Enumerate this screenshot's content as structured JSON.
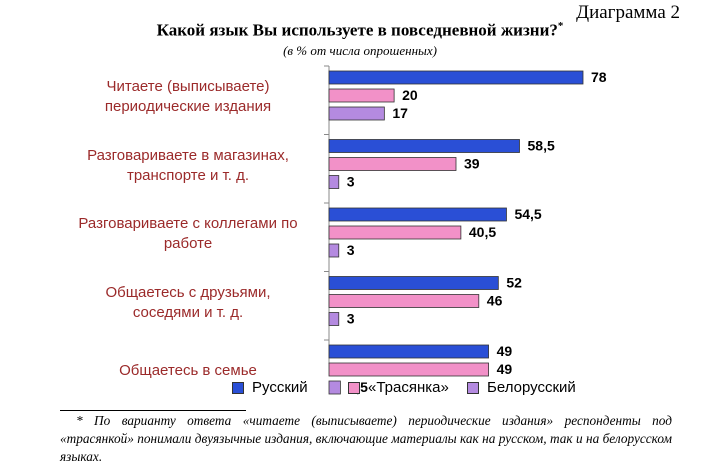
{
  "diagram_number": "Диаграмма 2",
  "title": "Какой язык Вы используете в повседневной жизни?",
  "title_marker": "*",
  "subtitle": "(в % от числа опрошенных)",
  "colors": {
    "russian": "#2a4fd6",
    "trasyanka": "#f291c8",
    "belarusian": "#b48ae0",
    "label": "#9b2a2a"
  },
  "chart_data": {
    "type": "bar",
    "orientation": "horizontal",
    "categories": [
      [
        "Читаете (выписываете)",
        "периодические издания"
      ],
      [
        "Разговариваете в магазинах,",
        "транспорте и т. д."
      ],
      [
        "Разговариваете с коллегами по",
        "работе"
      ],
      [
        "Общаетесь с друзьями,",
        "соседями и т. д."
      ],
      [
        "Общаетесь в семье"
      ]
    ],
    "series": [
      {
        "name": "Русский",
        "values": [
          78,
          58.5,
          54.5,
          52,
          49
        ],
        "labels": [
          "78",
          "58,5",
          "54,5",
          "52",
          "49"
        ]
      },
      {
        "name": "«Трасянка»",
        "values": [
          20,
          39,
          40.5,
          46,
          49
        ],
        "labels": [
          "20",
          "39",
          "40,5",
          "46",
          "49"
        ]
      },
      {
        "name": "Белорусский",
        "values": [
          17,
          3,
          3,
          3,
          3.5
        ],
        "labels": [
          "17",
          "3",
          "3",
          "3",
          "3,5"
        ]
      }
    ],
    "xlim": [
      0,
      80
    ],
    "legend": "bottom"
  },
  "footnote": "* По варианту ответа «читаете (выписываете) периодические издания» респонденты под «трасянкой» понимали двуязычные издания, включающие материалы как на русском, так и на белорусском языках."
}
